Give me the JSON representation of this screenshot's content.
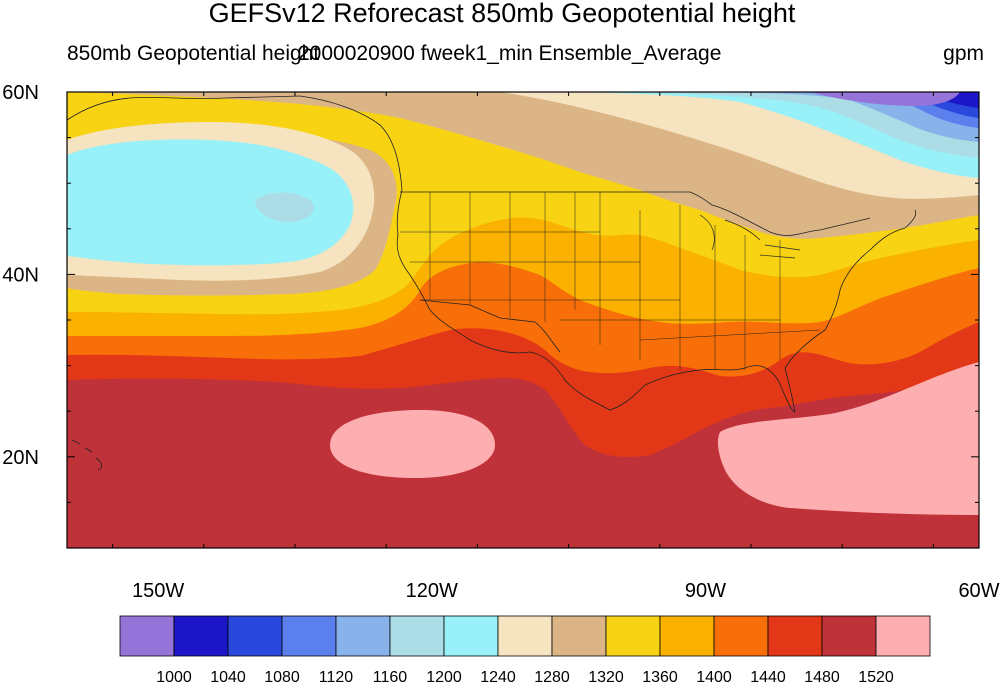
{
  "title": "GEFSv12 Reforecast 850mb Geopotential height",
  "subtitle_left": "850mb Geopotential height",
  "subtitle_center": "2000020900 fweek1_min Ensemble_Average",
  "subtitle_right": "gpm",
  "lat_labels": [
    "60N",
    "40N",
    "20N"
  ],
  "lon_labels": [
    "150W",
    "120W",
    "90W",
    "60W"
  ],
  "colorbar": {
    "labels": [
      "1000",
      "1040",
      "1080",
      "1120",
      "1160",
      "1200",
      "1240",
      "1280",
      "1320",
      "1360",
      "1400",
      "1440",
      "1480",
      "1520"
    ],
    "colors": [
      "#9474d9",
      "#1c16c8",
      "#2a48dc",
      "#5b80ee",
      "#88b2ea",
      "#acdde6",
      "#98f0f8",
      "#f6e3bf",
      "#dcb586",
      "#f8d314",
      "#fab100",
      "#f86e08",
      "#e23818",
      "#c0323a",
      "#fcaeb0"
    ]
  },
  "map": {
    "extent": {
      "lon": [
        -160,
        -60
      ],
      "lat": [
        10,
        60
      ]
    },
    "field": "850mb Geopotential height",
    "units": "gpm"
  }
}
